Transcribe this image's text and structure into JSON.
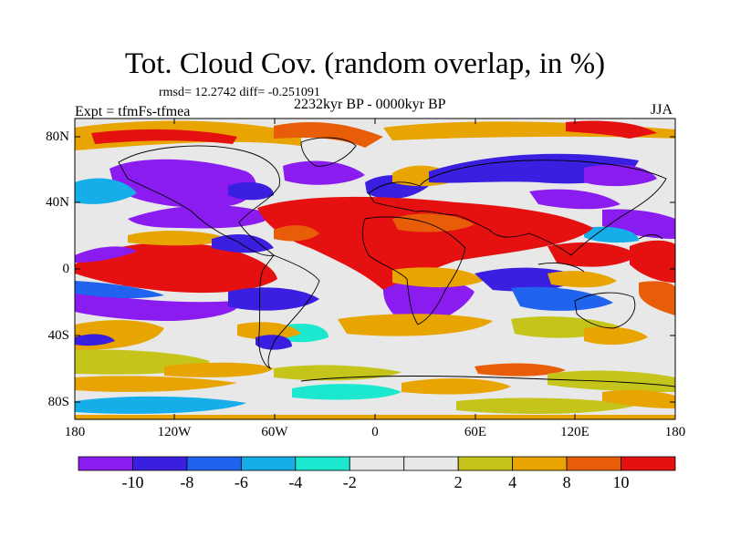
{
  "title": "Tot. Cloud Cov. (random overlap, in %)",
  "stats": "rmsd= 12.2742 diff= -0.251091",
  "period": "2232kyr BP - 0000kyr BP",
  "experiment": "Expt = tfmFs-tfmea",
  "season": "JJA",
  "latitude_labels": [
    "80N",
    "40N",
    "0",
    "40S",
    "80S"
  ],
  "longitude_labels": [
    "180",
    "120W",
    "60W",
    "0",
    "60E",
    "120E",
    "180"
  ],
  "colorbar": {
    "colors": [
      "#8a1cf0",
      "#3a1fe0",
      "#1f63ee",
      "#15aee8",
      "#1ce8d0",
      "#e8e8e8",
      "#e8e8e8",
      "#c4c41a",
      "#e8a400",
      "#e85e08",
      "#e51010"
    ],
    "labels": [
      "-10",
      "-8",
      "-6",
      "-4",
      "-2",
      "2",
      "4",
      "8",
      "10"
    ]
  }
}
